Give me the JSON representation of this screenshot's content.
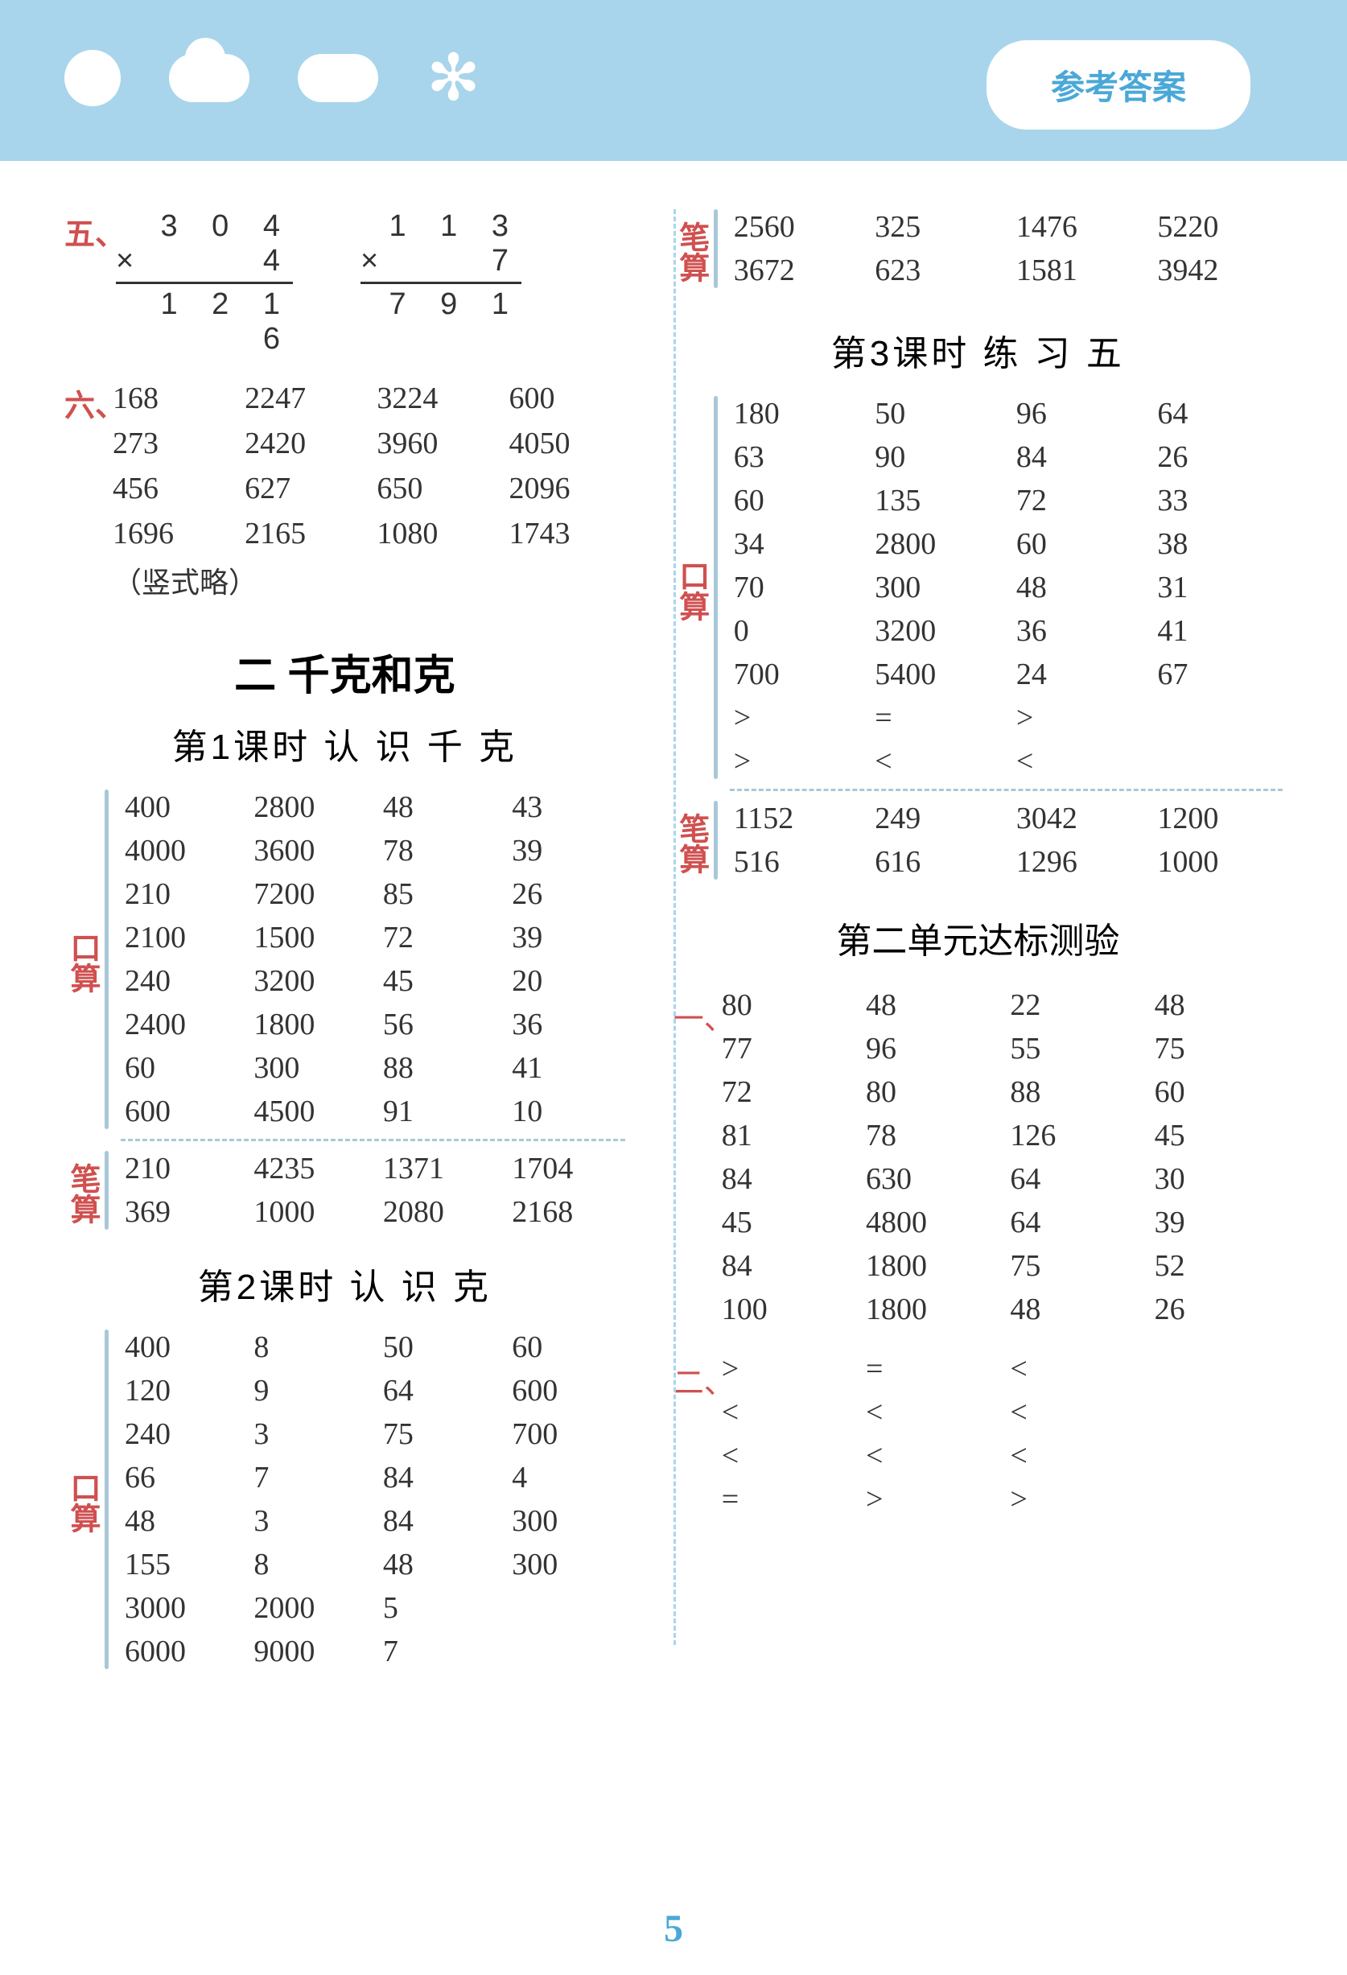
{
  "header": {
    "badge": "参考答案"
  },
  "page_number": "5",
  "left": {
    "sec5": {
      "marker": "五、",
      "calc1": {
        "top": "3 0 4",
        "mult_sign": "×",
        "mult_val": "4",
        "result": "1 2 1 6"
      },
      "calc2": {
        "top": "1 1 3",
        "mult_sign": "×",
        "mult_val": "7",
        "result": "7 9 1"
      }
    },
    "sec6": {
      "marker": "六、",
      "rows": [
        [
          "168",
          "2247",
          "3224",
          "600"
        ],
        [
          "273",
          "2420",
          "3960",
          "4050"
        ],
        [
          "456",
          "627",
          "650",
          "2096"
        ],
        [
          "1696",
          "2165",
          "1080",
          "1743"
        ]
      ],
      "note": "（竖式略）"
    },
    "chapter2": "二  千克和克",
    "lesson1": {
      "title": "第1课时  认 识 千 克",
      "kousuan_label": "口算",
      "kousuan": [
        [
          "400",
          "2800",
          "48",
          "43"
        ],
        [
          "4000",
          "3600",
          "78",
          "39"
        ],
        [
          "210",
          "7200",
          "85",
          "26"
        ],
        [
          "2100",
          "1500",
          "72",
          "39"
        ],
        [
          "240",
          "3200",
          "45",
          "20"
        ],
        [
          "2400",
          "1800",
          "56",
          "36"
        ],
        [
          "60",
          "300",
          "88",
          "41"
        ],
        [
          "600",
          "4500",
          "91",
          "10"
        ]
      ],
      "bisuan_label": "笔算",
      "bisuan": [
        [
          "210",
          "4235",
          "1371",
          "1704"
        ],
        [
          "369",
          "1000",
          "2080",
          "2168"
        ]
      ]
    },
    "lesson2": {
      "title": "第2课时  认  识  克",
      "kousuan_label": "口算",
      "kousuan": [
        [
          "400",
          "8",
          "50",
          "60"
        ],
        [
          "120",
          "9",
          "64",
          "600"
        ],
        [
          "240",
          "3",
          "75",
          "700"
        ],
        [
          "66",
          "7",
          "84",
          "4"
        ],
        [
          "48",
          "3",
          "84",
          "300"
        ],
        [
          "155",
          "8",
          "48",
          "300"
        ],
        [
          "3000",
          "2000",
          "5",
          ""
        ],
        [
          "6000",
          "9000",
          "7",
          ""
        ]
      ]
    }
  },
  "right": {
    "bisuan_top": {
      "label": "笔算",
      "rows": [
        [
          "2560",
          "325",
          "1476",
          "5220"
        ],
        [
          "3672",
          "623",
          "1581",
          "3942"
        ]
      ]
    },
    "lesson3": {
      "title": "第3课时  练  习  五",
      "kousuan_label": "口算",
      "kousuan": [
        [
          "180",
          "50",
          "96",
          "64"
        ],
        [
          "63",
          "90",
          "84",
          "26"
        ],
        [
          "60",
          "135",
          "72",
          "33"
        ],
        [
          "34",
          "2800",
          "60",
          "38"
        ],
        [
          "70",
          "300",
          "48",
          "31"
        ],
        [
          "0",
          "3200",
          "36",
          "41"
        ],
        [
          "700",
          "5400",
          "24",
          "67"
        ],
        [
          ">",
          "=",
          ">",
          ""
        ],
        [
          ">",
          "<",
          "<",
          ""
        ]
      ],
      "bisuan_label": "笔算",
      "bisuan": [
        [
          "1152",
          "249",
          "3042",
          "1200"
        ],
        [
          "516",
          "616",
          "1296",
          "1000"
        ]
      ]
    },
    "unit_test": {
      "title": "第二单元达标测验",
      "sec1_marker": "一、",
      "sec1": [
        [
          "80",
          "48",
          "22",
          "48"
        ],
        [
          "77",
          "96",
          "55",
          "75"
        ],
        [
          "72",
          "80",
          "88",
          "60"
        ],
        [
          "81",
          "78",
          "126",
          "45"
        ],
        [
          "84",
          "630",
          "64",
          "30"
        ],
        [
          "45",
          "4800",
          "64",
          "39"
        ],
        [
          "84",
          "1800",
          "75",
          "52"
        ],
        [
          "100",
          "1800",
          "48",
          "26"
        ]
      ],
      "sec2_marker": "二、",
      "sec2": [
        [
          ">",
          "=",
          "<",
          ""
        ],
        [
          "<",
          "<",
          "<",
          ""
        ],
        [
          "<",
          "<",
          "<",
          ""
        ],
        [
          "=",
          ">",
          ">",
          ""
        ]
      ]
    }
  }
}
